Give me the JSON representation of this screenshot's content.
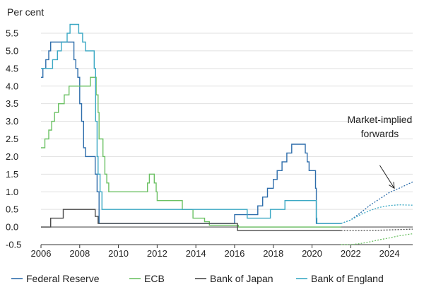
{
  "chart_data": {
    "type": "line",
    "ylabel": "Per cent",
    "xlim": [
      2006,
      2025.2
    ],
    "ylim": [
      -0.5,
      5.5
    ],
    "yticks": [
      -0.5,
      0.0,
      0.5,
      1.0,
      1.5,
      2.0,
      2.5,
      3.0,
      3.5,
      4.0,
      4.5,
      5.0,
      5.5
    ],
    "ytick_labels": [
      "-0.5",
      "0.0",
      "0.5",
      "1.0",
      "1.5",
      "2.0",
      "2.5",
      "3.0",
      "3.5",
      "4.0",
      "4.5",
      "5.0",
      "5.5"
    ],
    "xticks": [
      2006,
      2008,
      2010,
      2012,
      2014,
      2016,
      2018,
      2020,
      2022,
      2024
    ],
    "xtick_labels": [
      "2006",
      "2008",
      "2010",
      "2012",
      "2014",
      "2016",
      "2018",
      "2020",
      "2022",
      "2024"
    ],
    "grid": "horizontal",
    "legend_placement": "bottom",
    "annotation": {
      "lines": [
        "Market-implied",
        "forwards"
      ],
      "anchor": [
        2023.5,
        2.95
      ],
      "arrow_from": [
        2023.5,
        1.75
      ],
      "arrow_to": [
        2024.25,
        1.1
      ]
    },
    "series": [
      {
        "name": "Federal Reserve",
        "color": "#2d6dab",
        "points": [
          [
            2006.0,
            4.25
          ],
          [
            2006.1,
            4.5
          ],
          [
            2006.25,
            4.75
          ],
          [
            2006.4,
            5.0
          ],
          [
            2006.5,
            5.25
          ],
          [
            2007.6,
            5.25
          ],
          [
            2007.7,
            4.75
          ],
          [
            2007.8,
            4.5
          ],
          [
            2007.9,
            4.25
          ],
          [
            2008.0,
            3.5
          ],
          [
            2008.1,
            3.0
          ],
          [
            2008.2,
            2.25
          ],
          [
            2008.3,
            2.0
          ],
          [
            2008.8,
            1.5
          ],
          [
            2008.9,
            1.0
          ],
          [
            2009.0,
            0.1
          ],
          [
            2015.95,
            0.1
          ],
          [
            2016.0,
            0.35
          ],
          [
            2016.95,
            0.35
          ],
          [
            2017.2,
            0.6
          ],
          [
            2017.45,
            0.85
          ],
          [
            2017.7,
            1.1
          ],
          [
            2018.0,
            1.35
          ],
          [
            2018.2,
            1.6
          ],
          [
            2018.45,
            1.85
          ],
          [
            2018.7,
            2.1
          ],
          [
            2018.95,
            2.35
          ],
          [
            2019.55,
            2.35
          ],
          [
            2019.65,
            2.1
          ],
          [
            2019.75,
            1.85
          ],
          [
            2019.85,
            1.6
          ],
          [
            2020.1,
            1.6
          ],
          [
            2020.18,
            1.1
          ],
          [
            2020.22,
            0.1
          ],
          [
            2021.5,
            0.1
          ]
        ]
      },
      {
        "name": "ECB",
        "color": "#6cc164",
        "points": [
          [
            2006.0,
            2.25
          ],
          [
            2006.2,
            2.5
          ],
          [
            2006.4,
            2.75
          ],
          [
            2006.55,
            3.0
          ],
          [
            2006.7,
            3.25
          ],
          [
            2006.9,
            3.5
          ],
          [
            2007.2,
            3.75
          ],
          [
            2007.45,
            4.0
          ],
          [
            2008.5,
            4.0
          ],
          [
            2008.55,
            4.25
          ],
          [
            2008.8,
            4.25
          ],
          [
            2008.85,
            3.75
          ],
          [
            2008.95,
            3.25
          ],
          [
            2009.0,
            2.5
          ],
          [
            2009.2,
            2.0
          ],
          [
            2009.3,
            1.5
          ],
          [
            2009.4,
            1.25
          ],
          [
            2009.5,
            1.0
          ],
          [
            2011.3,
            1.0
          ],
          [
            2011.5,
            1.25
          ],
          [
            2011.6,
            1.5
          ],
          [
            2011.8,
            1.5
          ],
          [
            2011.85,
            1.25
          ],
          [
            2011.95,
            1.0
          ],
          [
            2012.0,
            0.75
          ],
          [
            2013.3,
            0.5
          ],
          [
            2013.85,
            0.25
          ],
          [
            2014.45,
            0.15
          ],
          [
            2014.7,
            0.05
          ],
          [
            2016.2,
            0.0
          ],
          [
            2021.5,
            0.0
          ]
        ]
      },
      {
        "name": "Bank of Japan",
        "color": "#4a4a4a",
        "points": [
          [
            2006.0,
            0.0
          ],
          [
            2006.5,
            0.25
          ],
          [
            2007.15,
            0.5
          ],
          [
            2008.8,
            0.3
          ],
          [
            2008.95,
            0.1
          ],
          [
            2016.1,
            0.1
          ],
          [
            2016.15,
            -0.1
          ],
          [
            2021.5,
            -0.1
          ]
        ]
      },
      {
        "name": "Bank of England",
        "color": "#3ba8c4",
        "points": [
          [
            2006.0,
            4.5
          ],
          [
            2006.6,
            4.75
          ],
          [
            2006.85,
            5.0
          ],
          [
            2007.05,
            5.25
          ],
          [
            2007.35,
            5.5
          ],
          [
            2007.5,
            5.75
          ],
          [
            2007.95,
            5.5
          ],
          [
            2008.15,
            5.25
          ],
          [
            2008.3,
            5.0
          ],
          [
            2008.75,
            4.5
          ],
          [
            2008.82,
            3.0
          ],
          [
            2008.9,
            2.0
          ],
          [
            2008.95,
            1.5
          ],
          [
            2009.05,
            1.0
          ],
          [
            2009.15,
            0.5
          ],
          [
            2016.6,
            0.5
          ],
          [
            2016.65,
            0.25
          ],
          [
            2017.85,
            0.5
          ],
          [
            2018.6,
            0.75
          ],
          [
            2020.2,
            0.75
          ],
          [
            2020.22,
            0.25
          ],
          [
            2020.25,
            0.1
          ],
          [
            2021.5,
            0.1
          ]
        ]
      }
    ],
    "forwards": [
      {
        "name": "Federal Reserve",
        "color": "#2d6dab",
        "points": [
          [
            2021.5,
            0.1
          ],
          [
            2022.0,
            0.2
          ],
          [
            2022.5,
            0.4
          ],
          [
            2023.0,
            0.62
          ],
          [
            2023.5,
            0.8
          ],
          [
            2024.0,
            0.98
          ],
          [
            2024.5,
            1.1
          ],
          [
            2025.2,
            1.28
          ]
        ]
      },
      {
        "name": "Bank of England",
        "color": "#3ba8c4",
        "points": [
          [
            2021.5,
            0.1
          ],
          [
            2022.0,
            0.2
          ],
          [
            2022.5,
            0.35
          ],
          [
            2023.0,
            0.47
          ],
          [
            2023.5,
            0.56
          ],
          [
            2024.0,
            0.61
          ],
          [
            2024.5,
            0.63
          ],
          [
            2025.2,
            0.62
          ]
        ]
      },
      {
        "name": "Bank of Japan",
        "color": "#4a4a4a",
        "points": [
          [
            2021.5,
            -0.1
          ],
          [
            2022.5,
            -0.1
          ],
          [
            2023.5,
            -0.09
          ],
          [
            2025.2,
            -0.06
          ]
        ]
      },
      {
        "name": "ECB",
        "color": "#6cc164",
        "points": [
          [
            2021.5,
            -0.5
          ],
          [
            2022.0,
            -0.5
          ],
          [
            2022.5,
            -0.47
          ],
          [
            2023.0,
            -0.42
          ],
          [
            2023.5,
            -0.36
          ],
          [
            2024.0,
            -0.31
          ],
          [
            2024.5,
            -0.25
          ],
          [
            2025.2,
            -0.19
          ]
        ]
      }
    ]
  }
}
